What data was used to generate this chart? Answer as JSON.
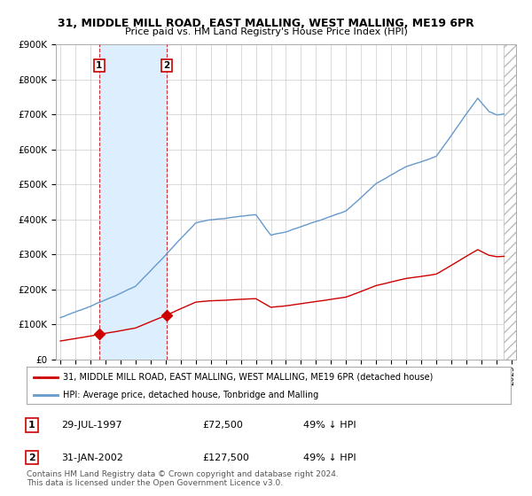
{
  "title": "31, MIDDLE MILL ROAD, EAST MALLING, WEST MALLING, ME19 6PR",
  "subtitle": "Price paid vs. HM Land Registry's House Price Index (HPI)",
  "legend_label_red": "31, MIDDLE MILL ROAD, EAST MALLING, WEST MALLING, ME19 6PR (detached house)",
  "legend_label_blue": "HPI: Average price, detached house, Tonbridge and Malling",
  "transactions": [
    {
      "label": "1",
      "date_str": "29-JUL-1997",
      "year": 1997.58,
      "price": 72500,
      "pct": "49%",
      "dir": "↓"
    },
    {
      "label": "2",
      "date_str": "31-JAN-2002",
      "year": 2002.08,
      "price": 127500,
      "pct": "49%",
      "dir": "↓"
    }
  ],
  "footnote": "Contains HM Land Registry data © Crown copyright and database right 2024.\nThis data is licensed under the Open Government Licence v3.0.",
  "ylim": [
    0,
    900000
  ],
  "yticks": [
    0,
    100000,
    200000,
    300000,
    400000,
    500000,
    600000,
    700000,
    800000,
    900000
  ],
  "xlim_start": 1994.7,
  "xlim_end": 2025.3,
  "bg_color": "#ffffff",
  "grid_color": "#cccccc",
  "red_color": "#cc0000",
  "blue_color": "#6699cc",
  "shade_color": "#ddeeff",
  "hatch_start": 2024.5
}
